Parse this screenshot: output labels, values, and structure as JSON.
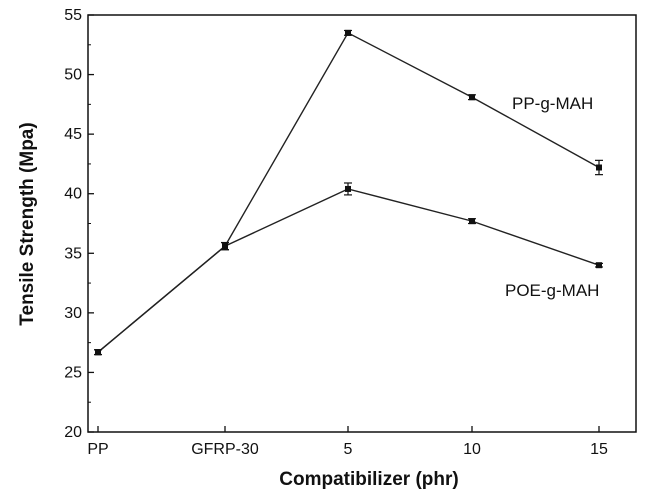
{
  "chart_data": {
    "type": "line",
    "categories": [
      "PP",
      "GFRP-30",
      "5",
      "10",
      "15"
    ],
    "xlabel": "Compatibilizer (phr)",
    "ylabel": "Tensile Strength (Mpa)",
    "ylim": [
      20,
      55
    ],
    "yticks": [
      "20",
      "25",
      "30",
      "35",
      "40",
      "45",
      "50",
      "55"
    ],
    "grid": false,
    "series": [
      {
        "name": "PP-g-MAH",
        "values": [
          26.7,
          35.6,
          53.5,
          48.1,
          42.2
        ],
        "errors": [
          0.2,
          0.3,
          0.2,
          0.2,
          0.6
        ]
      },
      {
        "name": "POE-g-MAH",
        "values": [
          26.7,
          35.6,
          40.4,
          37.7,
          34.0
        ],
        "errors": [
          0.2,
          0.3,
          0.5,
          0.2,
          0.15
        ]
      }
    ]
  }
}
